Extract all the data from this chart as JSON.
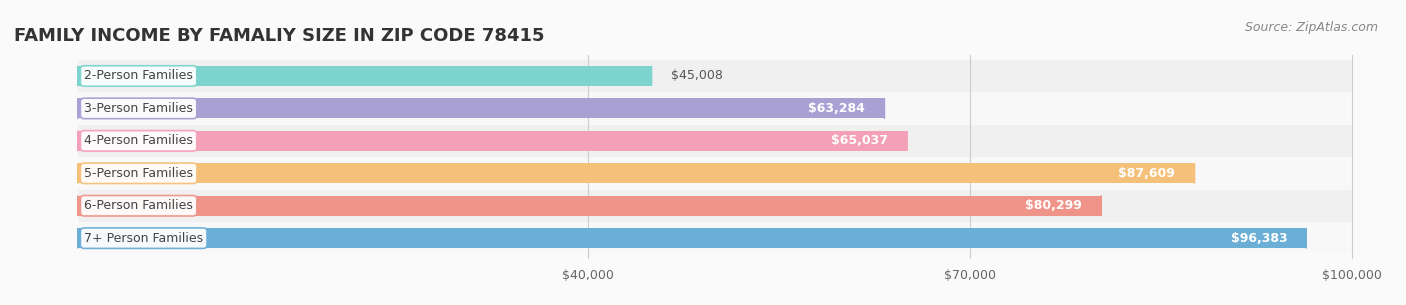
{
  "title": "FAMILY INCOME BY FAMALIY SIZE IN ZIP CODE 78415",
  "source": "Source: ZipAtlas.com",
  "categories": [
    "2-Person Families",
    "3-Person Families",
    "4-Person Families",
    "5-Person Families",
    "6-Person Families",
    "7+ Person Families"
  ],
  "values": [
    45008,
    63284,
    65037,
    87609,
    80299,
    96383
  ],
  "bar_colors": [
    "#7DD4CE",
    "#A9A0D4",
    "#F4A0B8",
    "#F5C07A",
    "#F0948A",
    "#6BAED6"
  ],
  "label_colors": [
    "#555555",
    "#555555",
    "#555555",
    "#ffffff",
    "#ffffff",
    "#ffffff"
  ],
  "value_labels": [
    "$45,008",
    "$63,284",
    "$65,037",
    "$87,609",
    "$80,299",
    "$96,383"
  ],
  "xlim": [
    0,
    100000
  ],
  "xticks": [
    40000,
    70000,
    100000
  ],
  "xtick_labels": [
    "$40,000",
    "$70,000",
    "$100,000"
  ],
  "bar_height": 0.62,
  "background_color": "#f5f5f5",
  "row_bg_colors": [
    "#f0f0f0",
    "#f8f8f8"
  ],
  "title_fontsize": 13,
  "label_fontsize": 9,
  "value_fontsize": 9,
  "source_fontsize": 9
}
